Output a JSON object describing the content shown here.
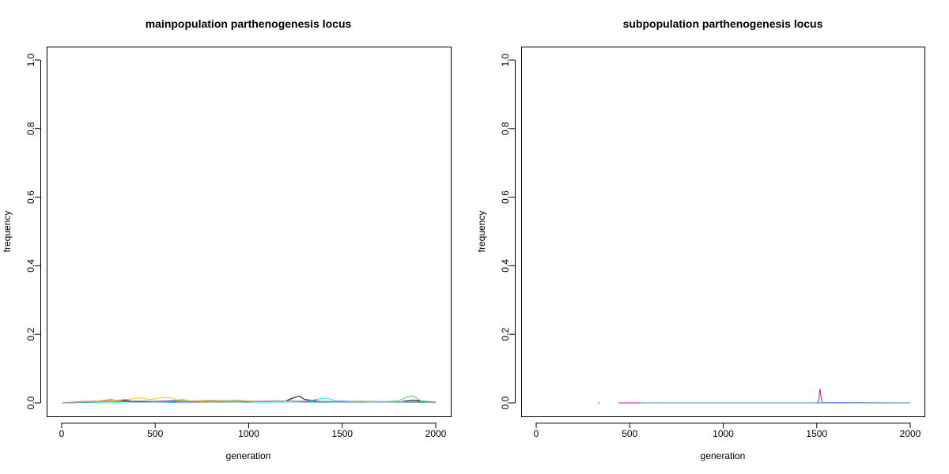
{
  "chart_data": [
    {
      "type": "line",
      "title": "mainpopulation parthenogenesis locus",
      "xlabel": "generation",
      "ylabel": "frequency",
      "xlim": [
        0,
        2000
      ],
      "ylim": [
        0,
        1
      ],
      "xticks": [
        0,
        500,
        1000,
        1500,
        2000
      ],
      "xtick_labels": [
        "0",
        "500",
        "1000",
        "1500",
        "2000"
      ],
      "yticks": [
        0,
        0.2,
        0.4,
        0.6,
        0.8,
        1.0
      ],
      "ytick_labels": [
        "0.0",
        "0.2",
        "0.4",
        "0.6",
        "0.8",
        "1.0"
      ],
      "grid": false,
      "series": [
        {
          "color": "#000000",
          "x": [
            0,
            150,
            280,
            340,
            420,
            600,
            800,
            1000,
            1200,
            1240,
            1270,
            1300,
            1400,
            1600,
            1800,
            1880,
            2000
          ],
          "y": [
            0,
            0.002,
            0.004,
            0.008,
            0.003,
            0.002,
            0.003,
            0.002,
            0.006,
            0.015,
            0.02,
            0.01,
            0.004,
            0.002,
            0.003,
            0.008,
            0.002
          ]
        },
        {
          "color": "#DF536B",
          "x": [
            0,
            100,
            200,
            260,
            320,
            400,
            600,
            800,
            1000,
            1200,
            1400,
            1600,
            1800,
            2000
          ],
          "y": [
            0,
            0.004,
            0.006,
            0.01,
            0.005,
            0.003,
            0.006,
            0.004,
            0.003,
            0.005,
            0.004,
            0.003,
            0.002,
            0.001
          ]
        },
        {
          "color": "#61D04F",
          "x": [
            0,
            120,
            250,
            400,
            560,
            700,
            900,
            1100,
            1300,
            1500,
            1700,
            1800,
            1850,
            1880,
            1920,
            2000
          ],
          "y": [
            0,
            0.002,
            0.004,
            0.006,
            0.004,
            0.006,
            0.003,
            0.004,
            0.005,
            0.004,
            0.003,
            0.006,
            0.018,
            0.02,
            0.006,
            0.003
          ]
        },
        {
          "color": "#2297E6",
          "x": [
            0,
            200,
            400,
            600,
            800,
            1000,
            1200,
            1400,
            1600,
            1800,
            2000
          ],
          "y": [
            0,
            0.002,
            0.003,
            0.002,
            0.004,
            0.002,
            0.003,
            0.002,
            0.003,
            0.002,
            0.001
          ]
        },
        {
          "color": "#28E2E5",
          "x": [
            0,
            150,
            300,
            500,
            650,
            700,
            900,
            1100,
            1300,
            1380,
            1420,
            1460,
            1600,
            1800,
            2000
          ],
          "y": [
            0,
            0.003,
            0.002,
            0.004,
            0.01,
            0.004,
            0.003,
            0.002,
            0.004,
            0.012,
            0.014,
            0.006,
            0.003,
            0.002,
            0.001
          ]
        },
        {
          "color": "#CD0BBC",
          "x": [
            0,
            100,
            250,
            400,
            550,
            700,
            850,
            1000,
            1150,
            1300,
            1500,
            1700,
            1900,
            2000
          ],
          "y": [
            0,
            0.003,
            0.005,
            0.003,
            0.006,
            0.004,
            0.007,
            0.004,
            0.006,
            0.003,
            0.005,
            0.003,
            0.004,
            0.002
          ]
        },
        {
          "color": "#F5C710",
          "x": [
            0,
            100,
            200,
            300,
            380,
            420,
            470,
            520,
            580,
            620,
            700,
            800,
            900,
            1000,
            1200,
            1400,
            1600,
            1800,
            2000
          ],
          "y": [
            0,
            0.003,
            0.006,
            0.008,
            0.012,
            0.015,
            0.01,
            0.014,
            0.016,
            0.008,
            0.006,
            0.008,
            0.005,
            0.006,
            0.004,
            0.005,
            0.003,
            0.004,
            0.002
          ]
        },
        {
          "color": "#9E9E9E",
          "x": [
            0,
            200,
            400,
            600,
            800,
            950,
            1000,
            1200,
            1400,
            1600,
            1800,
            2000
          ],
          "y": [
            0,
            0.004,
            0.006,
            0.004,
            0.005,
            0.008,
            0.004,
            0.006,
            0.004,
            0.005,
            0.003,
            0.002
          ]
        }
      ]
    },
    {
      "type": "line",
      "title": "subpopulation parthenogenesis locus",
      "xlabel": "generation",
      "ylabel": "frequency",
      "xlim": [
        0,
        2000
      ],
      "ylim": [
        0,
        1
      ],
      "xticks": [
        0,
        500,
        1000,
        1500,
        2000
      ],
      "xtick_labels": [
        "0",
        "500",
        "1000",
        "1500",
        "2000"
      ],
      "yticks": [
        0,
        0.2,
        0.4,
        0.6,
        0.8,
        1.0
      ],
      "ytick_labels": [
        "0.0",
        "0.2",
        "0.4",
        "0.6",
        "0.8",
        "1.0"
      ],
      "grid": false,
      "series": [
        {
          "color": "#DF536B",
          "x": [
            330,
            340
          ],
          "y": [
            0,
            0
          ]
        },
        {
          "color": "#DF536B",
          "x": [
            440,
            700
          ],
          "y": [
            0,
            0
          ]
        },
        {
          "color": "#CD0BBC",
          "x": [
            440,
            1500,
            1510,
            1515,
            1518,
            1522,
            1530,
            2000
          ],
          "y": [
            0,
            0,
            0.002,
            0.03,
            0.04,
            0.02,
            0.001,
            0
          ]
        },
        {
          "color": "#2297E6",
          "x": [
            560,
            1000,
            1500,
            2000
          ],
          "y": [
            0,
            0,
            0,
            0
          ]
        }
      ]
    }
  ]
}
